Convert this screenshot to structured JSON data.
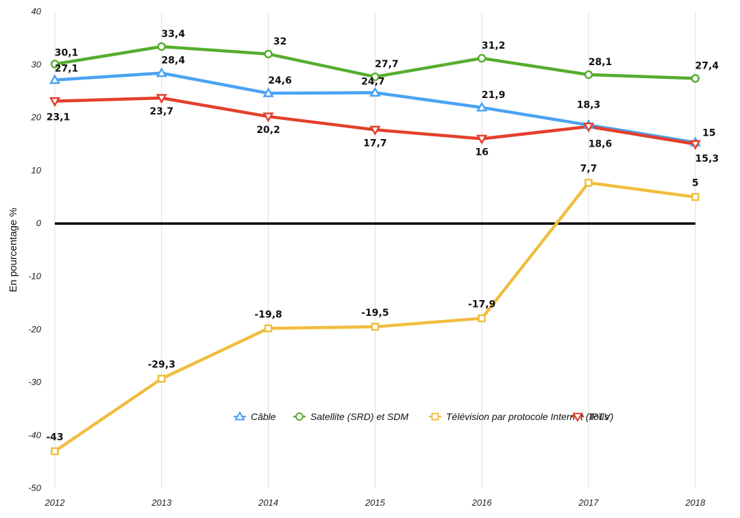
{
  "chart_data": {
    "type": "line",
    "title": "",
    "xlabel": "",
    "ylabel": "En pourcentage %",
    "x": [
      "2012",
      "2013",
      "2014",
      "2015",
      "2016",
      "2017",
      "2018"
    ],
    "ylim": [
      -50,
      40
    ],
    "yticks": [
      40,
      30,
      20,
      10,
      0,
      -10,
      -20,
      -30,
      -40,
      -50
    ],
    "grid": "vertical",
    "legend": "bottom-right",
    "series": [
      {
        "name": "Câble",
        "color": "#4aa3f3",
        "marker": "triangle-up",
        "values": [
          27.1,
          28.4,
          24.6,
          24.7,
          21.9,
          18.6,
          15.3
        ],
        "labels": [
          "27,1",
          "28,4",
          "24,6",
          "24,7",
          "21,9",
          "18,6",
          "15,3"
        ]
      },
      {
        "name": "Satellite (SRD) et SDM",
        "color": "#56ad2e",
        "marker": "circle",
        "values": [
          30.1,
          33.4,
          32,
          27.7,
          31.2,
          28.1,
          27.4
        ],
        "labels": [
          "30,1",
          "33,4",
          "32",
          "27,7",
          "31,2",
          "28,1",
          "27,4"
        ]
      },
      {
        "name": "Télévision par protocole Internet (IPTV)",
        "color": "#f1bd3e",
        "marker": "square",
        "values": [
          -43,
          -29.3,
          -19.8,
          -19.5,
          -17.9,
          7.7,
          5
        ],
        "labels": [
          "-43",
          "-29,3",
          "-19,8",
          "-19,5",
          "-17,9",
          "7,7",
          "5"
        ]
      },
      {
        "name": "Tous",
        "color": "#e43f2b",
        "marker": "triangle-down",
        "values": [
          23.1,
          23.7,
          20.2,
          17.7,
          16,
          18.3,
          15
        ],
        "labels": [
          "23,1",
          "23,7",
          "20,2",
          "17,7",
          "16",
          "18,3",
          "15"
        ]
      }
    ]
  }
}
